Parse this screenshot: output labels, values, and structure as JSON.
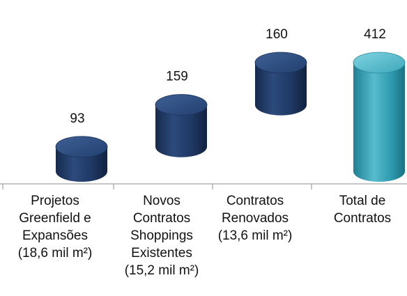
{
  "chart_data": {
    "type": "bar",
    "subtype": "waterfall",
    "categories": [
      "Projetos Greenfield e Expansões (18,6 mil m²)",
      "Novos Contratos Shoppings Existentes (15,2 mil m²)",
      "Contratos Renovados (13,6 mil m²)",
      "Total de Contratos"
    ],
    "category_lines": [
      [
        "Projetos",
        "Greenfield e",
        "Expansões",
        "(18,6 mil m²)"
      ],
      [
        "Novos",
        "Contratos",
        "Shoppings",
        "Existentes",
        "(15,2 mil m²)"
      ],
      [
        "Contratos",
        "Renovados",
        "(13,6 mil m²)"
      ],
      [
        "Total de",
        "Contratos"
      ]
    ],
    "values": [
      93,
      159,
      160,
      412
    ],
    "data_labels": [
      "93",
      "159",
      "160",
      "412"
    ],
    "cumulative_start": [
      0,
      93,
      252,
      0
    ],
    "title": "",
    "xlabel": "",
    "ylabel": "",
    "ylim": [
      0,
      412
    ],
    "grid": false,
    "legend": "none",
    "colors": {
      "step_bar": "#1f3864",
      "step_bar_light": "#3d5a8c",
      "total_bar": "#2e8fa3",
      "total_bar_light": "#5fc0d0",
      "axis": "#8c8c8c",
      "text": "#111111"
    }
  }
}
